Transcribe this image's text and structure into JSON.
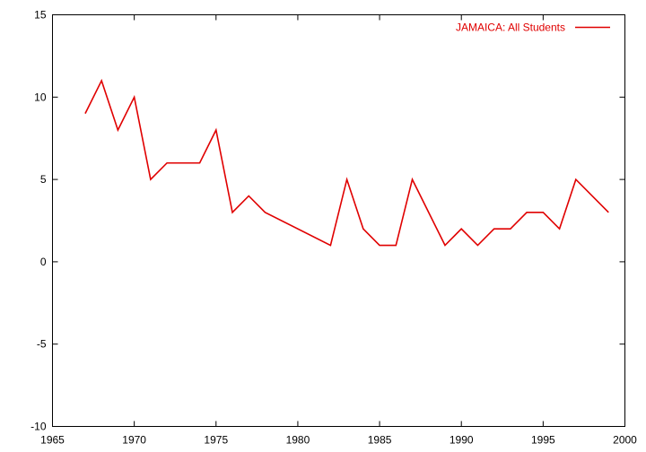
{
  "chart_data": {
    "type": "line",
    "title": "",
    "xlabel": "",
    "ylabel": "",
    "xlim": [
      1965,
      2000
    ],
    "ylim": [
      -10,
      15
    ],
    "x_ticks": [
      1965,
      1970,
      1975,
      1980,
      1985,
      1990,
      1995,
      2000
    ],
    "y_ticks": [
      -10,
      -5,
      0,
      5,
      10,
      15
    ],
    "x_tick_labels": [
      "1965",
      "1970",
      "1975",
      "1980",
      "1985",
      "1990",
      "1995",
      "2000"
    ],
    "y_tick_labels": [
      "-10",
      "-5",
      "0",
      "5",
      "10",
      "15"
    ],
    "grid": false,
    "legend_position": "top-right",
    "series": [
      {
        "name": "JAMAICA: All Students",
        "color": "#e00000",
        "x": [
          1967,
          1968,
          1969,
          1970,
          1971,
          1972,
          1973,
          1974,
          1975,
          1976,
          1977,
          1978,
          1982,
          1983,
          1984,
          1985,
          1986,
          1987,
          1989,
          1990,
          1991,
          1992,
          1993,
          1994,
          1995,
          1996,
          1997,
          1999
        ],
        "y": [
          9,
          11,
          8,
          10,
          5,
          6,
          6,
          6,
          8,
          3,
          4,
          3,
          1,
          5,
          2,
          1,
          1,
          5,
          1,
          2,
          1,
          2,
          2,
          3,
          3,
          2,
          5,
          3
        ]
      }
    ]
  }
}
